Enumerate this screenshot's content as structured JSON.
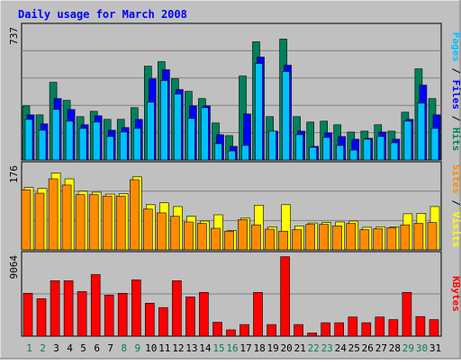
{
  "chart_data": [
    {
      "type": "bar",
      "title": "Daily usage for March 2008",
      "categories": [
        "1",
        "2",
        "3",
        "4",
        "5",
        "6",
        "7",
        "8",
        "9",
        "10",
        "11",
        "12",
        "13",
        "14",
        "15",
        "16",
        "17",
        "18",
        "19",
        "20",
        "21",
        "22",
        "23",
        "24",
        "25",
        "26",
        "27",
        "28",
        "29",
        "30",
        "31"
      ],
      "weekend_days": [
        "1",
        "2",
        "8",
        "9",
        "15",
        "16",
        "22",
        "23",
        "29",
        "30"
      ],
      "ymax_label": "737",
      "ylim": [
        0,
        737
      ],
      "series_label_parts": [
        "Pages",
        "Files",
        "Hits"
      ],
      "series": [
        {
          "name": "Hits",
          "values": [
            300,
            250,
            430,
            330,
            240,
            270,
            225,
            225,
            290,
            520,
            545,
            450,
            380,
            340,
            205,
            135,
            465,
            655,
            240,
            670,
            240,
            210,
            215,
            195,
            155,
            160,
            195,
            160,
            265,
            505,
            340
          ]
        },
        {
          "name": "Files",
          "values": [
            250,
            200,
            340,
            280,
            195,
            245,
            165,
            180,
            225,
            450,
            500,
            390,
            300,
            300,
            140,
            75,
            255,
            570,
            160,
            525,
            160,
            75,
            150,
            130,
            115,
            120,
            155,
            115,
            225,
            415,
            250
          ]
        },
        {
          "name": "Pages",
          "values": [
            225,
            165,
            280,
            215,
            175,
            210,
            130,
            155,
            175,
            320,
            440,
            365,
            230,
            290,
            90,
            50,
            80,
            535,
            160,
            490,
            140,
            70,
            125,
            80,
            55,
            115,
            130,
            95,
            215,
            315,
            175
          ]
        }
      ],
      "colors": {
        "Hits": "#00805c",
        "Files": "#0000ff",
        "Pages": "#00c0ff",
        "label_slash": "#000000",
        "title": "#0000ff",
        "weekday_label": "#000000",
        "weekend_label": "#00805c"
      }
    },
    {
      "type": "bar",
      "ymax_label": "176",
      "ylim": [
        0,
        176
      ],
      "series_label_parts": [
        "Sites",
        "Visits"
      ],
      "series": [
        {
          "name": "Visits",
          "values": [
            130,
            128,
            160,
            148,
            122,
            120,
            116,
            117,
            152,
            94,
            98,
            90,
            70,
            60,
            73,
            40,
            66,
            93,
            48,
            94,
            50,
            56,
            57,
            58,
            60,
            47,
            48,
            48,
            75,
            76,
            90
          ]
        },
        {
          "name": "Sites",
          "values": [
            125,
            118,
            148,
            135,
            115,
            115,
            112,
            112,
            146,
            85,
            77,
            70,
            58,
            55,
            45,
            39,
            63,
            52,
            43,
            39,
            42,
            53,
            53,
            50,
            55,
            42,
            44,
            46,
            52,
            55,
            57
          ]
        }
      ],
      "colors": {
        "Visits": "#ffff00",
        "Sites": "#ff8c00",
        "label_slash": "#000000"
      }
    },
    {
      "type": "bar",
      "ymax_label": "9064",
      "ylim": [
        0,
        9064
      ],
      "series_label_parts": [
        "KBytes"
      ],
      "series": [
        {
          "name": "KBytes",
          "values": [
            4800,
            4200,
            6200,
            6200,
            5000,
            6900,
            4600,
            4800,
            6300,
            3700,
            3200,
            6200,
            4400,
            4900,
            1550,
            700,
            1300,
            4900,
            1300,
            8900,
            1300,
            350,
            1500,
            1500,
            2150,
            1500,
            2150,
            1850,
            4900,
            2200,
            1850
          ]
        }
      ],
      "colors": {
        "KBytes": "#ff0000"
      }
    }
  ]
}
